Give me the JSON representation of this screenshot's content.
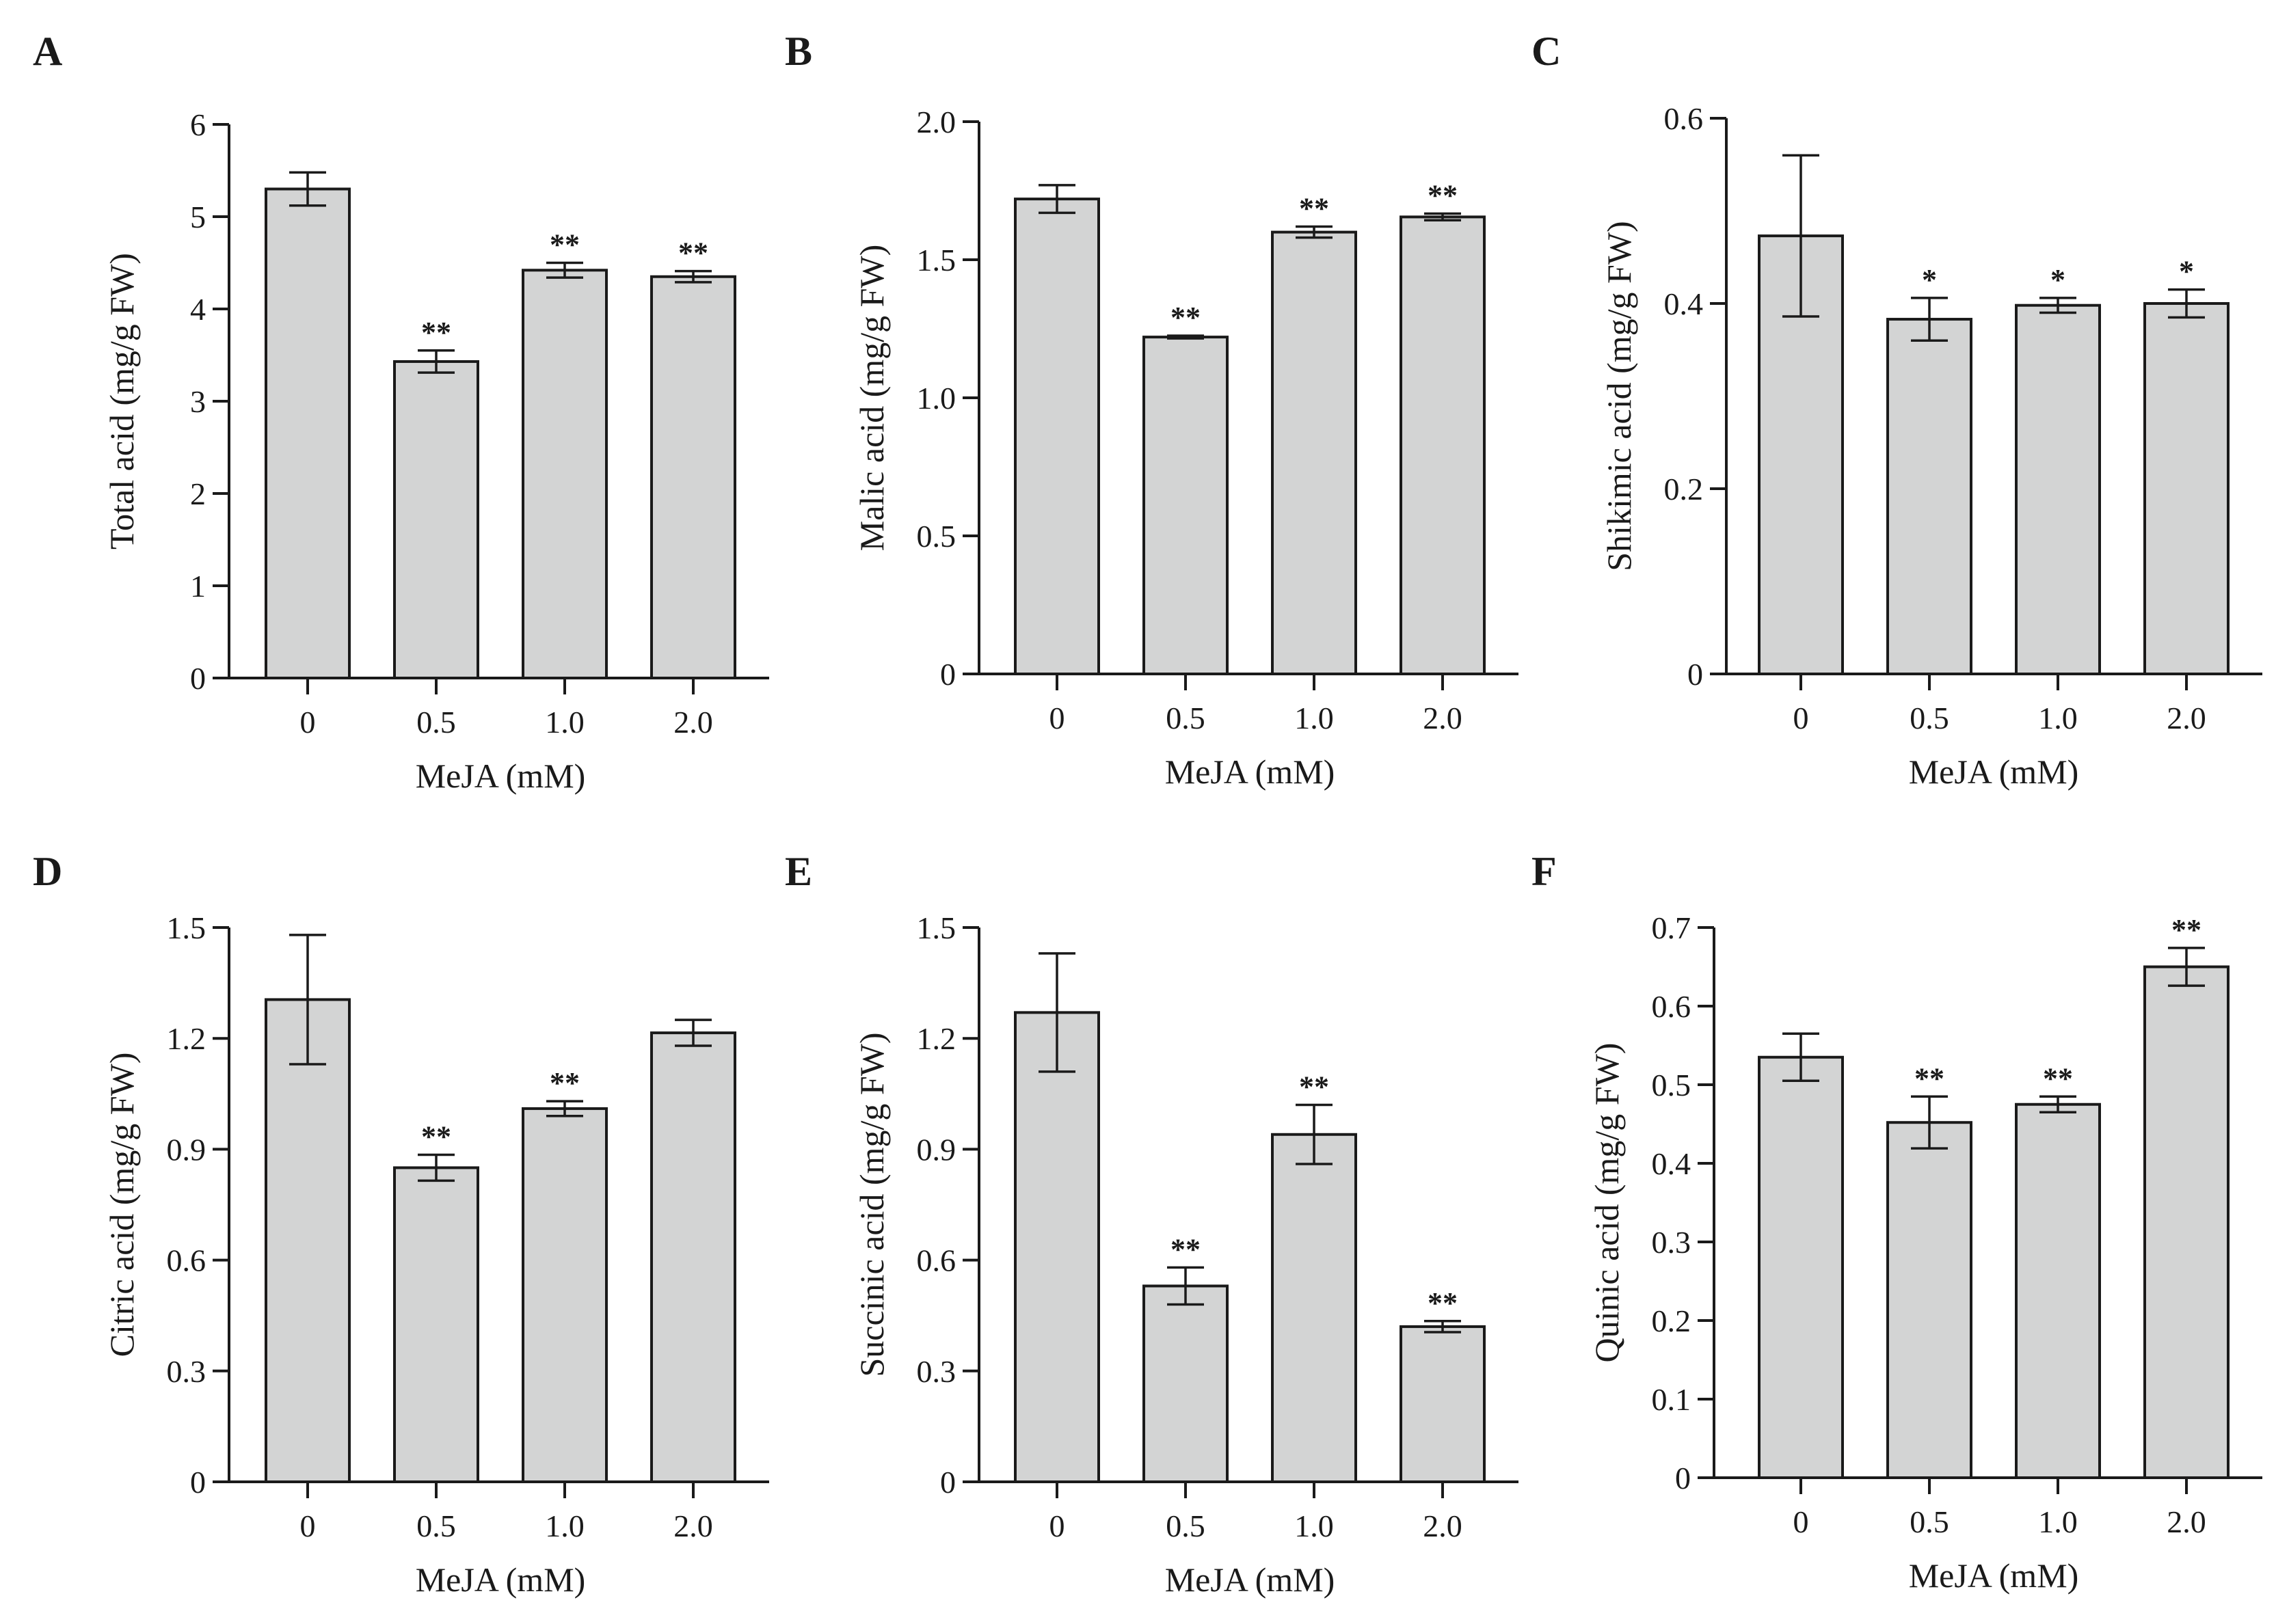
{
  "colors": {
    "bar_fill": "#d3d4d4",
    "stroke": "#1a1a1a"
  },
  "chart_data": [
    {
      "panel": "A",
      "type": "bar",
      "xlabel": "MeJA (mM)",
      "ylabel": "Total acid (mg/g FW)",
      "categories": [
        "0",
        "0.5",
        "1.0",
        "2.0"
      ],
      "values": [
        5.3,
        3.43,
        4.42,
        4.35
      ],
      "errors": [
        0.18,
        0.12,
        0.08,
        0.06
      ],
      "significance": [
        "",
        "**",
        "**",
        "**"
      ],
      "ylim": [
        0,
        6
      ],
      "yticks": [
        "0",
        "1",
        "2",
        "3",
        "4",
        "5",
        "6"
      ]
    },
    {
      "panel": "B",
      "type": "bar",
      "xlabel": "MeJA (mM)",
      "ylabel": "Malic acid (mg/g FW)",
      "categories": [
        "0",
        "0.5",
        "1.0",
        "2.0"
      ],
      "values": [
        1.72,
        1.22,
        1.6,
        1.655
      ],
      "errors": [
        0.05,
        0.005,
        0.02,
        0.012
      ],
      "significance": [
        "",
        "**",
        "**",
        "**"
      ],
      "ylim": [
        0,
        2.0
      ],
      "yticks": [
        "0",
        "0.5",
        "1.0",
        "1.5",
        "2.0"
      ]
    },
    {
      "panel": "C",
      "type": "bar",
      "xlabel": "MeJA (mM)",
      "ylabel": "Shikimic acid (mg/g FW)",
      "categories": [
        "0",
        "0.5",
        "1.0",
        "2.0"
      ],
      "values": [
        0.473,
        0.383,
        0.398,
        0.4
      ],
      "errors": [
        0.087,
        0.023,
        0.008,
        0.015
      ],
      "significance": [
        "",
        "*",
        "*",
        "*"
      ],
      "ylim": [
        0,
        0.6
      ],
      "yticks": [
        "0",
        "0.2",
        "0.4",
        "0.6"
      ]
    },
    {
      "panel": "D",
      "type": "bar",
      "xlabel": "MeJA (mM)",
      "ylabel": "Citric acid (mg/g FW)",
      "categories": [
        "0",
        "0.5",
        "1.0",
        "2.0"
      ],
      "values": [
        1.305,
        0.85,
        1.01,
        1.215
      ],
      "errors": [
        0.175,
        0.035,
        0.02,
        0.035
      ],
      "significance": [
        "",
        "**",
        "**",
        ""
      ],
      "ylim": [
        0,
        1.5
      ],
      "yticks": [
        "0",
        "0.3",
        "0.6",
        "0.9",
        "1.2",
        "1.5"
      ]
    },
    {
      "panel": "E",
      "type": "bar",
      "xlabel": "MeJA (mM)",
      "ylabel": "Succinic acid (mg/g FW)",
      "categories": [
        "0",
        "0.5",
        "1.0",
        "2.0"
      ],
      "values": [
        1.27,
        0.53,
        0.94,
        0.42
      ],
      "errors": [
        0.16,
        0.05,
        0.08,
        0.015
      ],
      "significance": [
        "",
        "**",
        "**",
        "**"
      ],
      "ylim": [
        0,
        1.5
      ],
      "yticks": [
        "0",
        "0.3",
        "0.6",
        "0.9",
        "1.2",
        "1.5"
      ]
    },
    {
      "panel": "F",
      "type": "bar",
      "xlabel": "MeJA (mM)",
      "ylabel": "Quinic acid (mg/g FW)",
      "categories": [
        "0",
        "0.5",
        "1.0",
        "2.0"
      ],
      "values": [
        0.535,
        0.452,
        0.475,
        0.65
      ],
      "errors": [
        0.03,
        0.033,
        0.01,
        0.024
      ],
      "significance": [
        "",
        "**",
        "**",
        "**"
      ],
      "ylim": [
        0,
        0.7
      ],
      "yticks": [
        "0",
        "0.1",
        "0.2",
        "0.3",
        "0.4",
        "0.5",
        "0.6",
        "0.7"
      ]
    }
  ]
}
